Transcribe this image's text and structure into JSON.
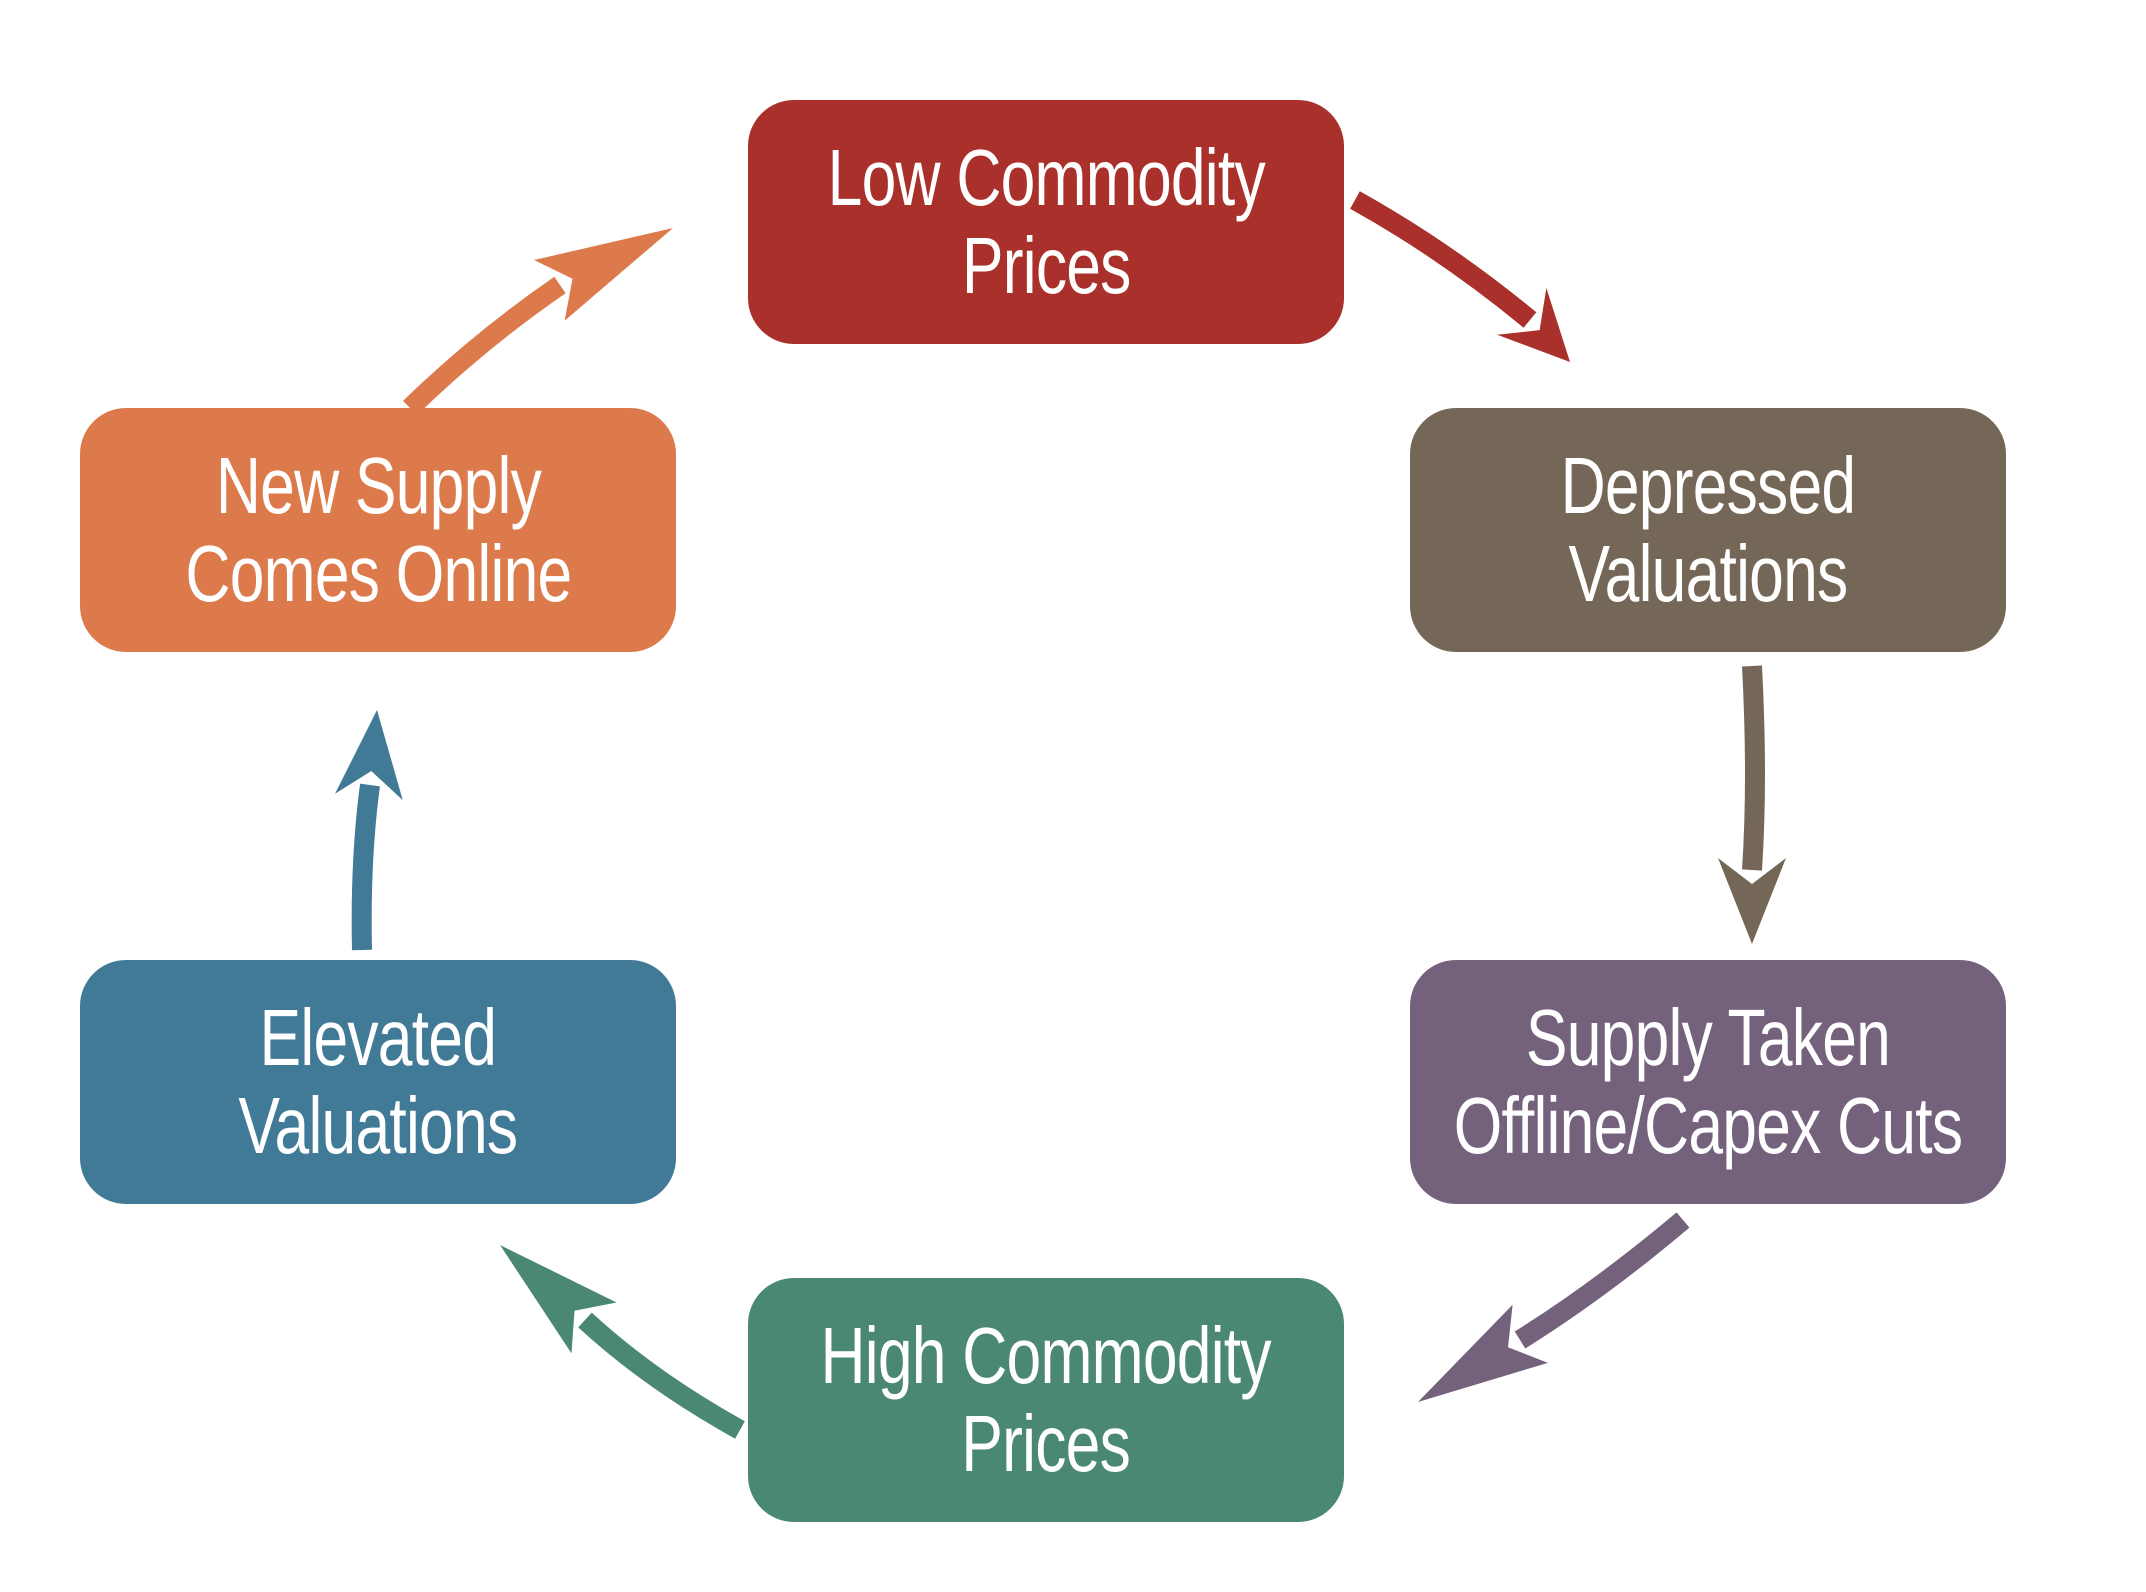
{
  "cycle": {
    "nodes": [
      {
        "id": "low",
        "lines": [
          "Low Commodity",
          "Prices"
        ],
        "color": "#A9302B"
      },
      {
        "id": "depressed",
        "lines": [
          "Depressed",
          "Valuations"
        ],
        "color": "#756757"
      },
      {
        "id": "supply-taken",
        "lines": [
          "Supply Taken",
          "Offline/Capex Cuts"
        ],
        "color": "#74627C"
      },
      {
        "id": "high",
        "lines": [
          "High Commodity",
          "Prices"
        ],
        "color": "#4A8874"
      },
      {
        "id": "elevated",
        "lines": [
          "Elevated",
          "Valuations"
        ],
        "color": "#407A97"
      },
      {
        "id": "new-supply",
        "lines": [
          "New Supply",
          "Comes Online"
        ],
        "color": "#DC7A4C"
      }
    ],
    "arrows": [
      {
        "from": "low",
        "to": "depressed",
        "color": "#A9302B"
      },
      {
        "from": "depressed",
        "to": "supply-taken",
        "color": "#756757"
      },
      {
        "from": "supply-taken",
        "to": "high",
        "color": "#74627C"
      },
      {
        "from": "high",
        "to": "elevated",
        "color": "#4A8874"
      },
      {
        "from": "elevated",
        "to": "new-supply",
        "color": "#407A97"
      },
      {
        "from": "new-supply",
        "to": "low",
        "color": "#DC7A4C"
      }
    ]
  }
}
